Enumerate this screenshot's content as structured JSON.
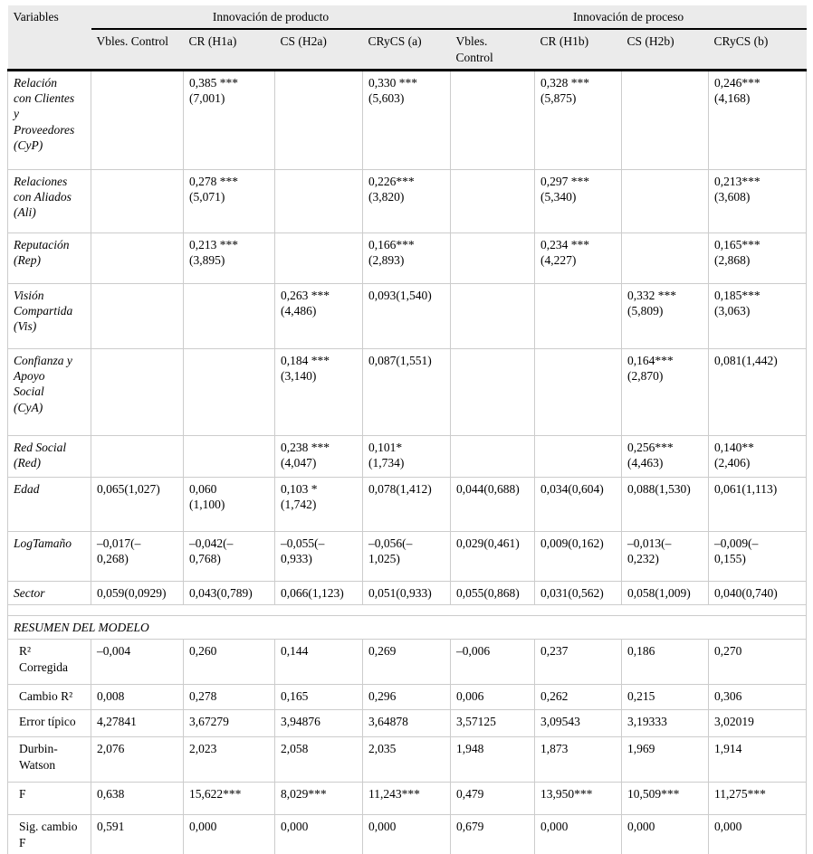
{
  "table": {
    "corner_label": "Variables",
    "groups": [
      {
        "label": "Innovación de producto"
      },
      {
        "label": "Innovación de proceso"
      }
    ],
    "columns": [
      "Vbles. Control",
      "CR (H1a)",
      "CS (H2a)",
      "CRyCS (a)",
      "Vbles.\nControl",
      "CR (H1b)",
      "CS (H2b)",
      "CRyCS (b)"
    ],
    "variable_rows": [
      {
        "label": "Relación\ncon Clientes\ny\nProveedores\n(CyP)",
        "cells": [
          "",
          "0,385 ***\n(7,001)",
          "",
          "0,330 ***\n(5,603)",
          "",
          "0,328 ***\n(5,875)",
          "",
          "0,246***\n(4,168)"
        ]
      },
      {
        "label": "Relaciones\ncon Aliados\n(Ali)",
        "cells": [
          "",
          "0,278 ***\n(5,071)",
          "",
          "0,226***\n(3,820)",
          "",
          "0,297 ***\n(5,340)",
          "",
          "0,213***\n(3,608)"
        ]
      },
      {
        "label": "Reputación\n(Rep)",
        "cells": [
          "",
          "0,213 ***\n(3,895)",
          "",
          "0,166***\n(2,893)",
          "",
          "0,234 ***\n(4,227)",
          "",
          "0,165***\n(2,868)"
        ]
      },
      {
        "label": "Visión\nCompartida\n(Vis)",
        "cells": [
          "",
          "",
          "0,263 ***\n(4,486)",
          "0,093(1,540)",
          "",
          "",
          "0,332 ***\n(5,809)",
          "0,185***\n(3,063)"
        ]
      },
      {
        "label": "Confianza y\nApoyo\nSocial\n(CyA)",
        "cells": [
          "",
          "",
          "0,184 ***\n(3,140)",
          "0,087(1,551)",
          "",
          "",
          "0,164***\n(2,870)",
          "0,081(1,442)"
        ]
      },
      {
        "label": "Red Social\n(Red)",
        "cells": [
          "",
          "",
          "0,238 ***\n(4,047)",
          "0,101*\n(1,734)",
          "",
          "",
          "0,256***\n(4,463)",
          "0,140**\n(2,406)"
        ]
      },
      {
        "label": "Edad",
        "cells": [
          "0,065(1,027)",
          "0,060\n(1,100)",
          "0,103 *\n(1,742)",
          "0,078(1,412)",
          "0,044(0,688)",
          "0,034(0,604)",
          "0,088(1,530)",
          "0,061(1,113)"
        ]
      },
      {
        "label": "LogTamaño",
        "cells": [
          "–0,017(–\n0,268)",
          "–0,042(–\n0,768)",
          "–0,055(–\n0,933)",
          "–0,056(–\n1,025)",
          "0,029(0,461)",
          "0,009(0,162)",
          "–0,013(–\n0,232)",
          "–0,009(–\n0,155)"
        ]
      },
      {
        "label": "Sector",
        "cells": [
          "0,059(0,0929)",
          "0,043(0,789)",
          "0,066(1,123)",
          "0,051(0,933)",
          "0,055(0,868)",
          "0,031(0,562)",
          "0,058(1,009)",
          "0,040(0,740)"
        ]
      }
    ],
    "section_title": "RESUMEN DEL MODELO",
    "summary_rows": [
      {
        "label": "R²\nCorregida",
        "cells": [
          "–0,004",
          "0,260",
          "0,144",
          "0,269",
          "–0,006",
          "0,237",
          "0,186",
          "0,270"
        ]
      },
      {
        "label": "Cambio R²",
        "cells": [
          "0,008",
          "0,278",
          "0,165",
          "0,296",
          "0,006",
          "0,262",
          "0,215",
          "0,306"
        ]
      },
      {
        "label": "Error típico",
        "cells": [
          "4,27841",
          "3,67279",
          "3,94876",
          "3,64878",
          "3,57125",
          "3,09543",
          "3,19333",
          "3,02019"
        ]
      },
      {
        "label": "Durbin-\nWatson",
        "cells": [
          "2,076",
          "2,023",
          "2,058",
          "2,035",
          "1,948",
          "1,873",
          "1,969",
          "1,914"
        ]
      },
      {
        "label": "F",
        "cells": [
          "0,638",
          "15,622***",
          "8,029***",
          "11,243***",
          "0,479",
          "13,950***",
          "10,509***",
          "11,275***"
        ]
      },
      {
        "label": "Sig. cambio\nF",
        "cells": [
          "0,591",
          "0,000",
          "0,000",
          "0,000",
          "0,679",
          "0,000",
          "0,000",
          "0,000"
        ]
      }
    ]
  },
  "colors": {
    "header_bg": "#ebebeb",
    "grid_line": "#cccccc",
    "rule": "#000000",
    "text": "#000000",
    "page_bg": "#ffffff"
  }
}
